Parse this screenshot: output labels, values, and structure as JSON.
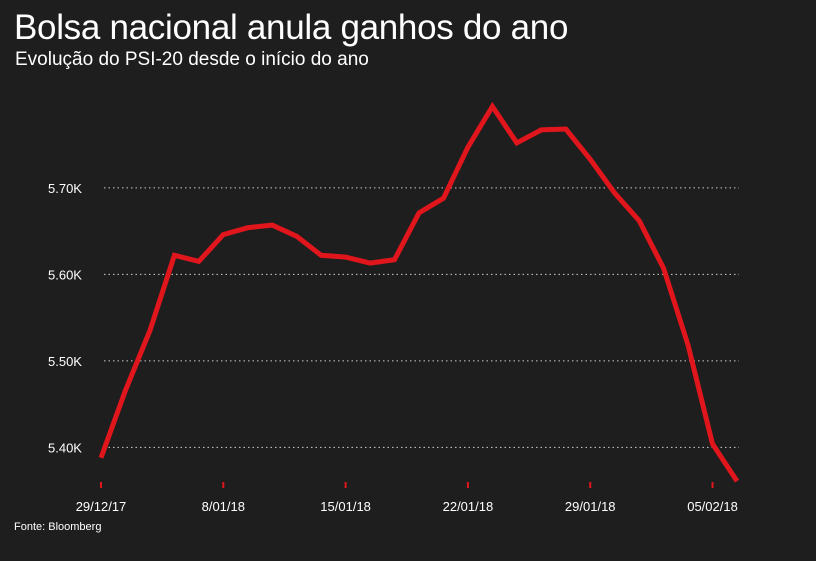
{
  "header": {
    "title": "Bolsa nacional anula ganhos do ano",
    "subtitle": "Evolução do PSI-20 desde o início do ano"
  },
  "footer": {
    "source": "Fonte: Bloomberg"
  },
  "colors": {
    "background": "#1e1e1e",
    "line": "#e0161c",
    "text": "#ffffff",
    "grid": "#cfcfcf",
    "axis_tick": "#e0161c"
  },
  "chart_data": {
    "type": "line",
    "title": "Bolsa nacional anula ganhos do ano",
    "subtitle": "Evolução do PSI-20 desde o início do ano",
    "xlabel": "",
    "ylabel": "",
    "ylim": [
      5360,
      5790
    ],
    "grid": true,
    "y_ticks": [
      {
        "value": 5400,
        "label": "5.40K"
      },
      {
        "value": 5500,
        "label": "5.50K"
      },
      {
        "value": 5600,
        "label": "5.60K"
      },
      {
        "value": 5700,
        "label": "5.70K"
      }
    ],
    "x_ticks": [
      {
        "index": 0,
        "label": "29/12/17"
      },
      {
        "index": 5,
        "label": "8/01/18"
      },
      {
        "index": 10,
        "label": "15/01/18"
      },
      {
        "index": 15,
        "label": "22/01/18"
      },
      {
        "index": 20,
        "label": "29/01/18"
      },
      {
        "index": 25,
        "label": "05/02/18"
      }
    ],
    "series": [
      {
        "name": "PSI-20",
        "values": [
          5388,
          5466,
          5535,
          5622,
          5615,
          5646,
          5654,
          5657,
          5644,
          5622,
          5620,
          5613,
          5617,
          5671,
          5688,
          5747,
          5794,
          5752,
          5767,
          5768,
          5733,
          5694,
          5662,
          5607,
          5518,
          5404,
          5361
        ]
      }
    ]
  }
}
